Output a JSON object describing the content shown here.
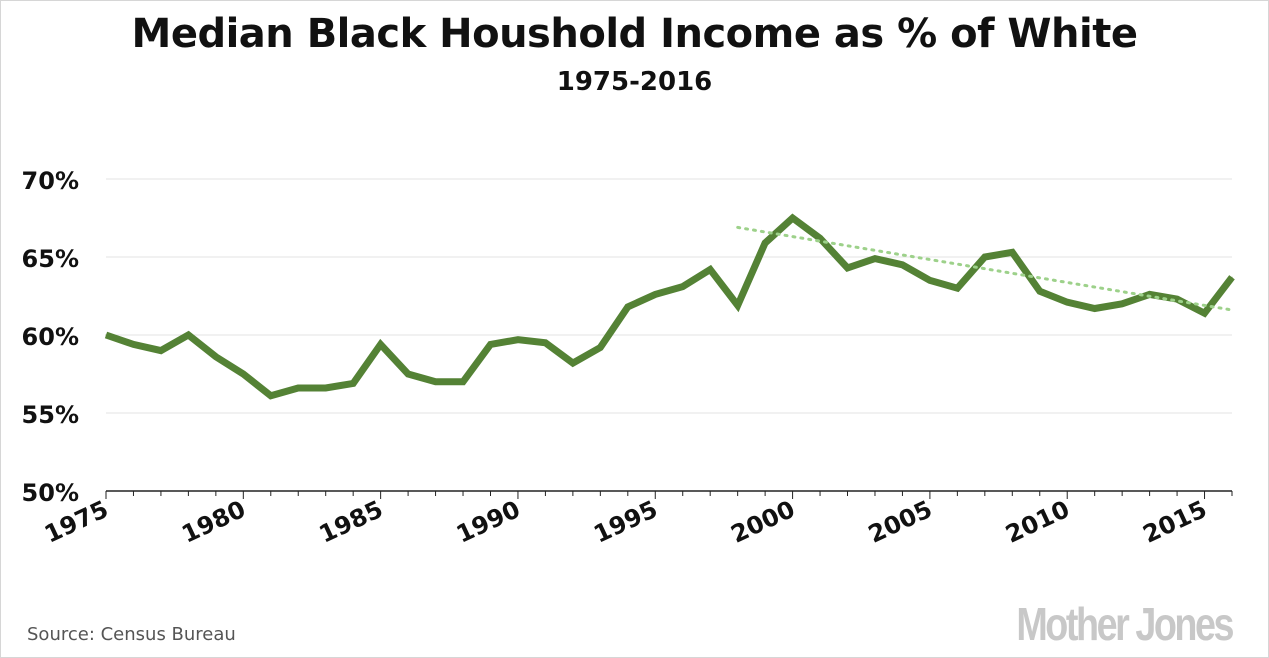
{
  "chart_data": {
    "type": "line",
    "title": "Median Black Houshold Income as % of White",
    "subtitle": "1975-2016",
    "source": "Source: Census Bureau",
    "xlabel": "",
    "ylabel": "",
    "xlim": [
      1975,
      2016
    ],
    "ylim": [
      50,
      70
    ],
    "x_ticks": [
      1975,
      1980,
      1985,
      1990,
      1995,
      2000,
      2005,
      2010,
      2015
    ],
    "y_ticks": [
      50,
      55,
      60,
      65,
      70
    ],
    "y_tick_labels": [
      "50%",
      "55%",
      "60%",
      "65%",
      "70%"
    ],
    "grid": "horizontal",
    "series": [
      {
        "color": "#548235",
        "x": [
          1975,
          1976,
          1977,
          1978,
          1979,
          1980,
          1981,
          1982,
          1983,
          1984,
          1985,
          1986,
          1987,
          1988,
          1989,
          1990,
          1991,
          1992,
          1993,
          1994,
          1995,
          1996,
          1997,
          1998,
          1999,
          2000,
          2001,
          2002,
          2003,
          2004,
          2005,
          2006,
          2007,
          2008,
          2009,
          2010,
          2011,
          2012,
          2013,
          2014,
          2015,
          2016
        ],
        "values": [
          60.0,
          59.4,
          59.0,
          60.0,
          58.6,
          57.5,
          56.1,
          56.6,
          56.6,
          56.9,
          59.4,
          57.5,
          57.0,
          57.0,
          59.4,
          59.7,
          59.5,
          58.2,
          59.2,
          61.8,
          62.6,
          63.1,
          64.2,
          61.9,
          65.9,
          67.5,
          66.2,
          64.3,
          64.9,
          64.5,
          63.5,
          63.0,
          65.0,
          65.3,
          62.8,
          62.1,
          61.7,
          62.0,
          62.6,
          62.3,
          61.4,
          63.7
        ]
      },
      {
        "style": "dotted",
        "color": "#9dd18a",
        "x": [
          1998,
          2016
        ],
        "values": [
          66.9,
          61.6
        ]
      }
    ]
  },
  "branding": {
    "logo_text": "Mother Jones"
  }
}
